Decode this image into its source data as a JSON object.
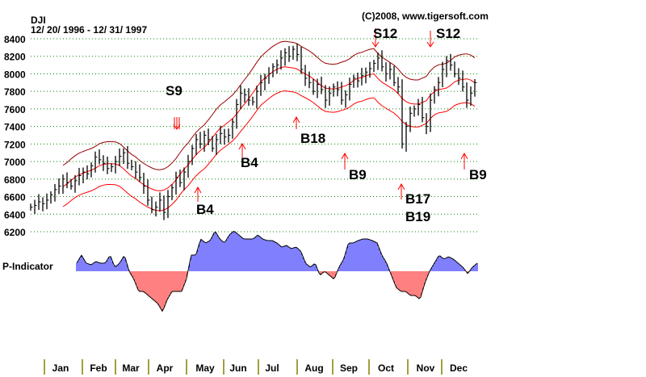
{
  "chart_data": {
    "type": "line",
    "title": "DJI",
    "subtitle": "12/ 20/ 1996 - 12/ 31/ 1997",
    "copyright": "(C)2008, www.tigersoft.com",
    "ylim": [
      6200,
      8400
    ],
    "yticks": [
      "8400",
      "8200",
      "8000",
      "7800",
      "7600",
      "7400",
      "7200",
      "7000",
      "6800",
      "6600",
      "6400",
      "6200"
    ],
    "grid": true,
    "months": [
      "Jan",
      "Feb",
      "Mar",
      "Apr",
      "May",
      "Jun",
      "Jul",
      "Aug",
      "Sep",
      "Oct",
      "Nov",
      "Dec"
    ],
    "price_series": {
      "name": "DJI",
      "closes": [
        6480,
        6500,
        6540,
        6520,
        6560,
        6620,
        6680,
        6720,
        6800,
        6760,
        6720,
        6780,
        6840,
        6880,
        6860,
        6950,
        7050,
        7020,
        6980,
        6920,
        6940,
        7000,
        7060,
        7100,
        6980,
        6940,
        6880,
        6820,
        6720,
        6560,
        6450,
        6480,
        6560,
        6420,
        6600,
        6700,
        6820,
        6760,
        6880,
        7000,
        7150,
        7250,
        7200,
        7300,
        7250,
        7150,
        7250,
        7320,
        7280,
        7300,
        7450,
        7650,
        7780,
        7760,
        7700,
        7680,
        7800,
        7900,
        7950,
        8000,
        8080,
        8100,
        8180,
        8240,
        8200,
        8280,
        8220,
        8050,
        7950,
        7900,
        7800,
        7880,
        7820,
        7700,
        7780,
        7850,
        7820,
        7700,
        7760,
        7880,
        7950,
        7920,
        7980,
        8020,
        8060,
        8120,
        8180,
        8080,
        8000,
        8050,
        7900,
        7850,
        7200,
        7400,
        7550,
        7600,
        7650,
        7500,
        7400,
        7700,
        7820,
        7900,
        8050,
        8150,
        8100,
        8000,
        7950,
        7850,
        7700,
        7780,
        7900
      ]
    },
    "bands": {
      "upper_pct": 3.6,
      "lower_pct": -3.4,
      "start_index": 8
    },
    "indicator": {
      "label": "P-Indicator",
      "values": [
        10,
        20,
        10,
        8,
        12,
        10,
        10,
        20,
        5,
        10,
        20,
        0,
        -10,
        -25,
        -25,
        -30,
        -35,
        -40,
        -50,
        -35,
        -25,
        -25,
        -25,
        -10,
        20,
        20,
        40,
        35,
        38,
        50,
        40,
        35,
        45,
        50,
        45,
        40,
        40,
        40,
        45,
        40,
        38,
        38,
        35,
        30,
        32,
        28,
        30,
        25,
        10,
        5,
        10,
        -5,
        0,
        -5,
        -10,
        5,
        15,
        35,
        35,
        38,
        40,
        40,
        38,
        35,
        20,
        10,
        -5,
        -20,
        -25,
        -25,
        -30,
        -30,
        -35,
        -15,
        0,
        10,
        20,
        15,
        18,
        15,
        10,
        5,
        -3,
        5,
        10
      ],
      "positive_color": "#0000ff",
      "negative_color": "#ff0000"
    },
    "signals": [
      {
        "label": "S9",
        "type": "sell",
        "index": 36
      },
      {
        "label": "B4",
        "type": "buy",
        "index": 41
      },
      {
        "label": "B4",
        "type": "buy",
        "index": 52
      },
      {
        "label": "B18",
        "type": "buy",
        "index": 66
      },
      {
        "label": "S12",
        "type": "sell",
        "index": 85
      },
      {
        "label": "B9",
        "type": "buy",
        "index": 78
      },
      {
        "label": "B17",
        "type": "buy",
        "index": 92
      },
      {
        "label": "B19",
        "type": "buy",
        "index": 92
      },
      {
        "label": "S12",
        "type": "sell",
        "index": 99
      },
      {
        "label": "B9",
        "type": "buy",
        "index": 107
      }
    ],
    "colors": {
      "bars": "#000000",
      "upper_band": "#990000",
      "bands": "#ff0000",
      "grid": "#008800",
      "signal": "#ff0000",
      "month_ticks": "#808000"
    }
  }
}
